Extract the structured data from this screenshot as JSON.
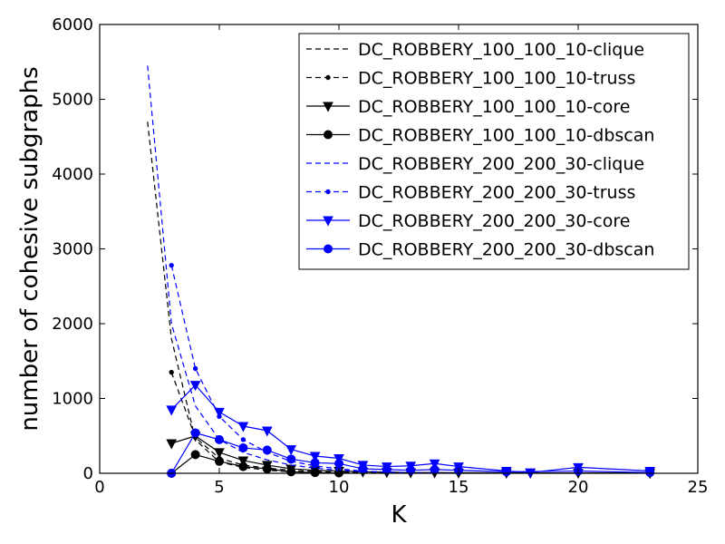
{
  "chart_data": {
    "type": "line",
    "title": "",
    "xlabel": "K",
    "ylabel": "number of cohesive subgraphs",
    "xlim": [
      0,
      25
    ],
    "ylim": [
      0,
      6000
    ],
    "xticks": [
      0,
      5,
      10,
      15,
      20,
      25
    ],
    "yticks": [
      0,
      1000,
      2000,
      3000,
      4000,
      5000,
      6000
    ],
    "xtick_labels": [
      "0",
      "5",
      "10",
      "15",
      "20",
      "25"
    ],
    "ytick_labels": [
      "0",
      "1000",
      "2000",
      "3000",
      "4000",
      "5000",
      "6000"
    ],
    "grid": false,
    "legend_position": "top-right",
    "series": [
      {
        "name": "DC_ROBBERY_100_100_10-clique",
        "color": "#000000",
        "line": "dashed",
        "marker": "none",
        "x": [
          2,
          3,
          4,
          5,
          6,
          7,
          8,
          9,
          10,
          11,
          12,
          13
        ],
        "y": [
          4700,
          1800,
          450,
          150,
          80,
          40,
          20,
          10,
          5,
          3,
          2,
          1
        ]
      },
      {
        "name": "DC_ROBBERY_100_100_10-truss",
        "color": "#000000",
        "line": "dashed",
        "marker": "dot",
        "x": [
          3,
          4,
          5,
          6,
          7,
          8,
          9,
          10,
          11,
          12,
          13
        ],
        "y": [
          1350,
          480,
          200,
          110,
          70,
          40,
          25,
          15,
          10,
          5,
          3
        ]
      },
      {
        "name": "DC_ROBBERY_100_100_10-core",
        "color": "#000000",
        "line": "solid",
        "marker": "triangle-down",
        "x": [
          3,
          4,
          5,
          6,
          7,
          8,
          9,
          10,
          11,
          12,
          13,
          14,
          15,
          17,
          18,
          20,
          23
        ],
        "y": [
          400,
          500,
          280,
          170,
          110,
          60,
          40,
          30,
          20,
          15,
          10,
          10,
          8,
          5,
          5,
          5,
          3
        ]
      },
      {
        "name": "DC_ROBBERY_100_100_10-dbscan",
        "color": "#000000",
        "line": "solid",
        "marker": "circle",
        "x": [
          3,
          4,
          5,
          6,
          7,
          8,
          9,
          10
        ],
        "y": [
          0,
          250,
          160,
          90,
          60,
          20,
          10,
          5
        ]
      },
      {
        "name": "DC_ROBBERY_200_200_30-clique",
        "color": "#0000ff",
        "line": "dashed",
        "marker": "none",
        "x": [
          2,
          3,
          4,
          5,
          6,
          7,
          8,
          9,
          10,
          11,
          12,
          13,
          14,
          15
        ],
        "y": [
          5450,
          2000,
          900,
          450,
          280,
          180,
          110,
          70,
          40,
          25,
          15,
          10,
          5,
          3
        ]
      },
      {
        "name": "DC_ROBBERY_200_200_30-truss",
        "color": "#0000ff",
        "line": "dashed",
        "marker": "dot",
        "x": [
          3,
          4,
          5,
          6,
          7,
          8,
          9,
          10,
          11,
          12,
          13
        ],
        "y": [
          2780,
          1400,
          760,
          450,
          280,
          160,
          100,
          60,
          30,
          15,
          8
        ]
      },
      {
        "name": "DC_ROBBERY_200_200_30-core",
        "color": "#0000ff",
        "line": "solid",
        "marker": "triangle-down",
        "x": [
          3,
          4,
          5,
          6,
          7,
          8,
          9,
          10,
          11,
          12,
          13,
          14,
          15,
          17,
          18,
          20,
          23
        ],
        "y": [
          850,
          1180,
          820,
          630,
          570,
          320,
          230,
          200,
          110,
          90,
          100,
          130,
          90,
          30,
          10,
          80,
          30
        ]
      },
      {
        "name": "DC_ROBBERY_200_200_30-dbscan",
        "color": "#0000ff",
        "line": "solid",
        "marker": "circle",
        "x": [
          3,
          4,
          5,
          6,
          7,
          8,
          9,
          10,
          11,
          12,
          13,
          14,
          15,
          17,
          20,
          23
        ],
        "y": [
          0,
          540,
          450,
          340,
          310,
          190,
          140,
          130,
          60,
          50,
          40,
          50,
          40,
          20,
          30,
          10
        ]
      }
    ]
  }
}
